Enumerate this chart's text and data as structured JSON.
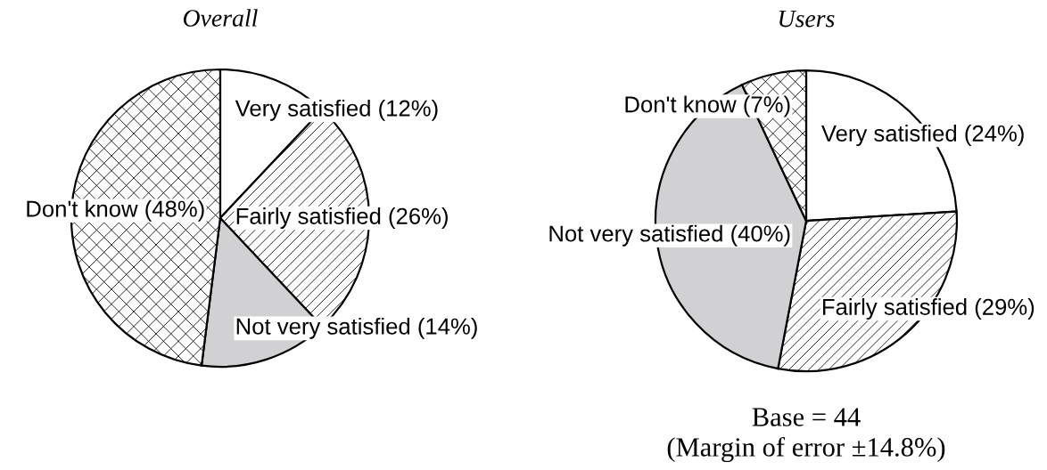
{
  "chart_data": [
    {
      "type": "pie",
      "title": "Overall",
      "categories": [
        "Very satisfied",
        "Fairly satisfied",
        "Not very satisfied",
        "Don't know"
      ],
      "values": [
        12,
        26,
        14,
        48
      ],
      "colors": [
        "#ffffff",
        "#ffffff",
        "#d1d1d3",
        "#ffffff"
      ],
      "value_labels": [
        "(12%)",
        "(26%)",
        "(14%)",
        "(48%)"
      ]
    },
    {
      "type": "pie",
      "title": "Users",
      "categories": [
        "Very satisfied",
        "Fairly satisfied",
        "Not very satisfied",
        "Don't know"
      ],
      "values": [
        24,
        29,
        40,
        7
      ],
      "colors": [
        "#ffffff",
        "#ffffff",
        "#d1d1d3",
        "#ffffff"
      ],
      "value_labels": [
        "(24%)",
        "(29%)",
        "(40%)",
        "(7%)"
      ],
      "annotations": [
        "Base = 44",
        "(Margin of error ±14.8%)"
      ]
    }
  ]
}
